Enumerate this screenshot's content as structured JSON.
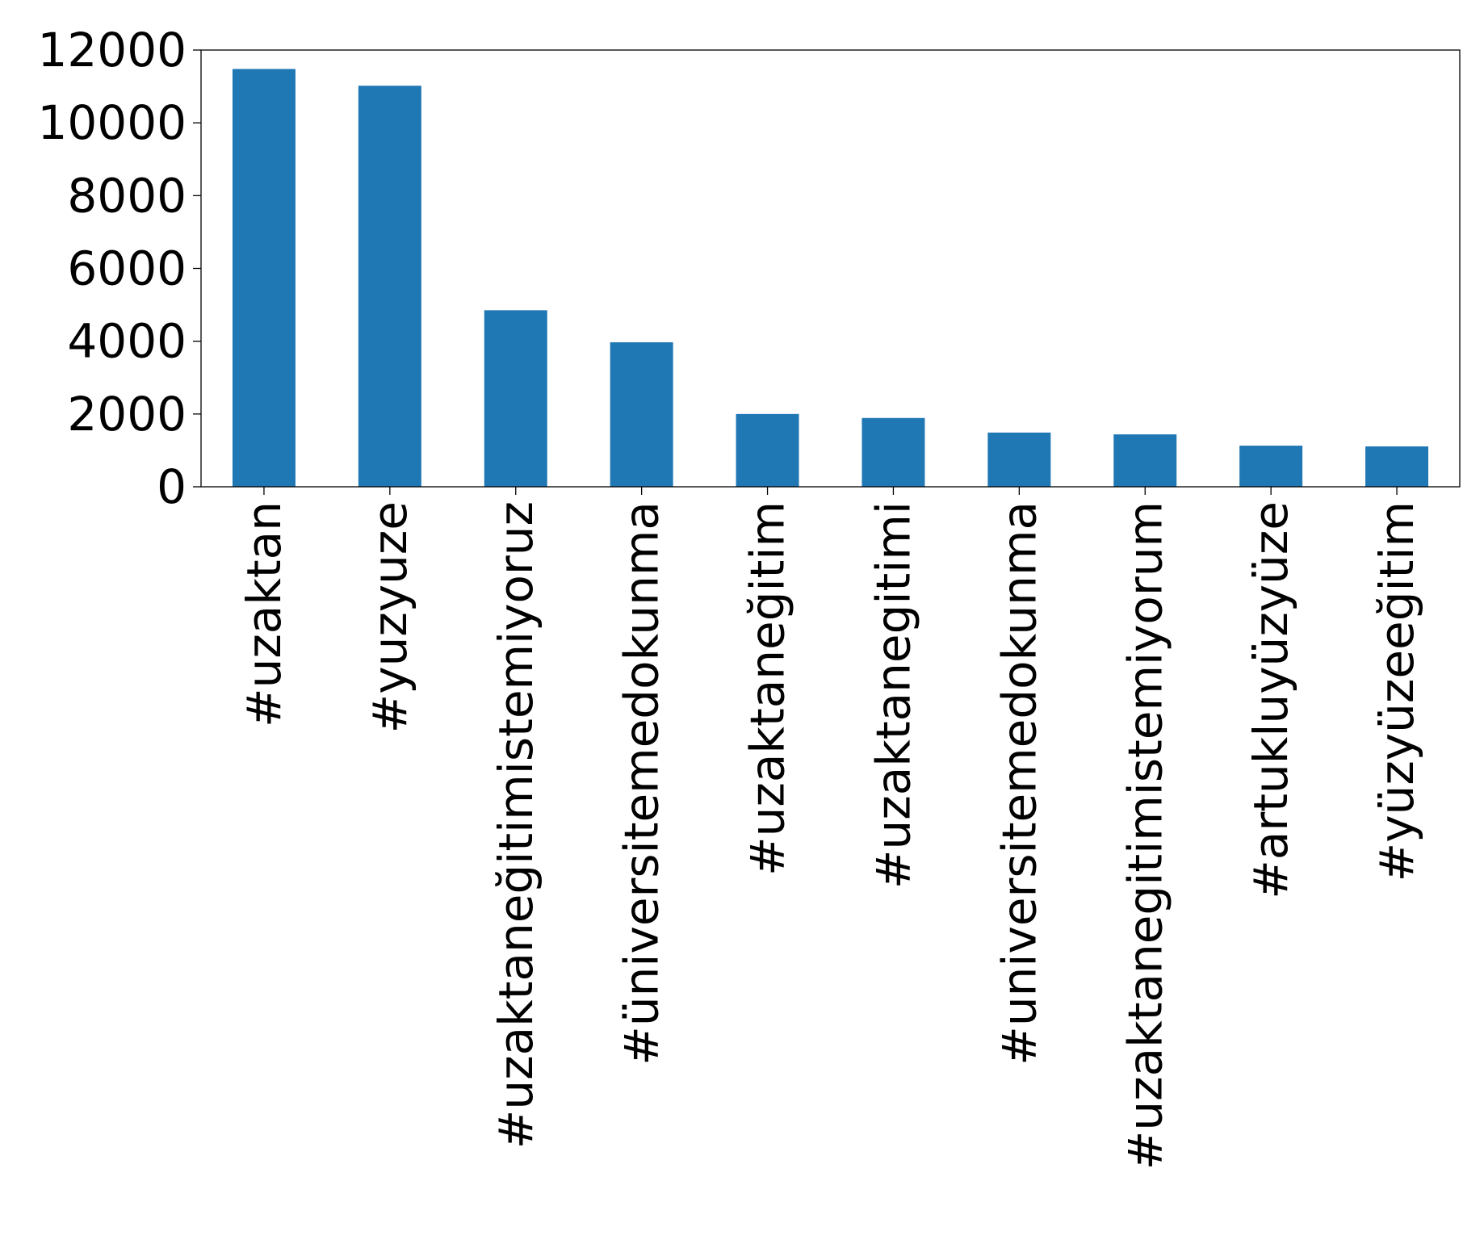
{
  "chart_data": {
    "type": "bar",
    "title": "",
    "xlabel": "",
    "ylabel": "",
    "categories": [
      "#uzaktan",
      "#yuzyuze",
      "#uzaktaneğitimistemiyoruz",
      "#üniversitemedokunma",
      "#uzaktaneğitim",
      "#uzaktanegitimi",
      "#universitemedokunma",
      "#uzaktanegitimistemiyorum",
      "#artukluyüzyüze",
      "#yüzyüzeeğitim"
    ],
    "values": [
      11480,
      11020,
      4850,
      3970,
      2000,
      1890,
      1490,
      1440,
      1130,
      1110
    ],
    "ylim": [
      0,
      12000
    ],
    "yticks": [
      0,
      2000,
      4000,
      6000,
      8000,
      10000,
      12000
    ],
    "grid": false,
    "legend": "none",
    "bar_color": "#1f77b4",
    "tick_label_orientation": "vertical"
  }
}
